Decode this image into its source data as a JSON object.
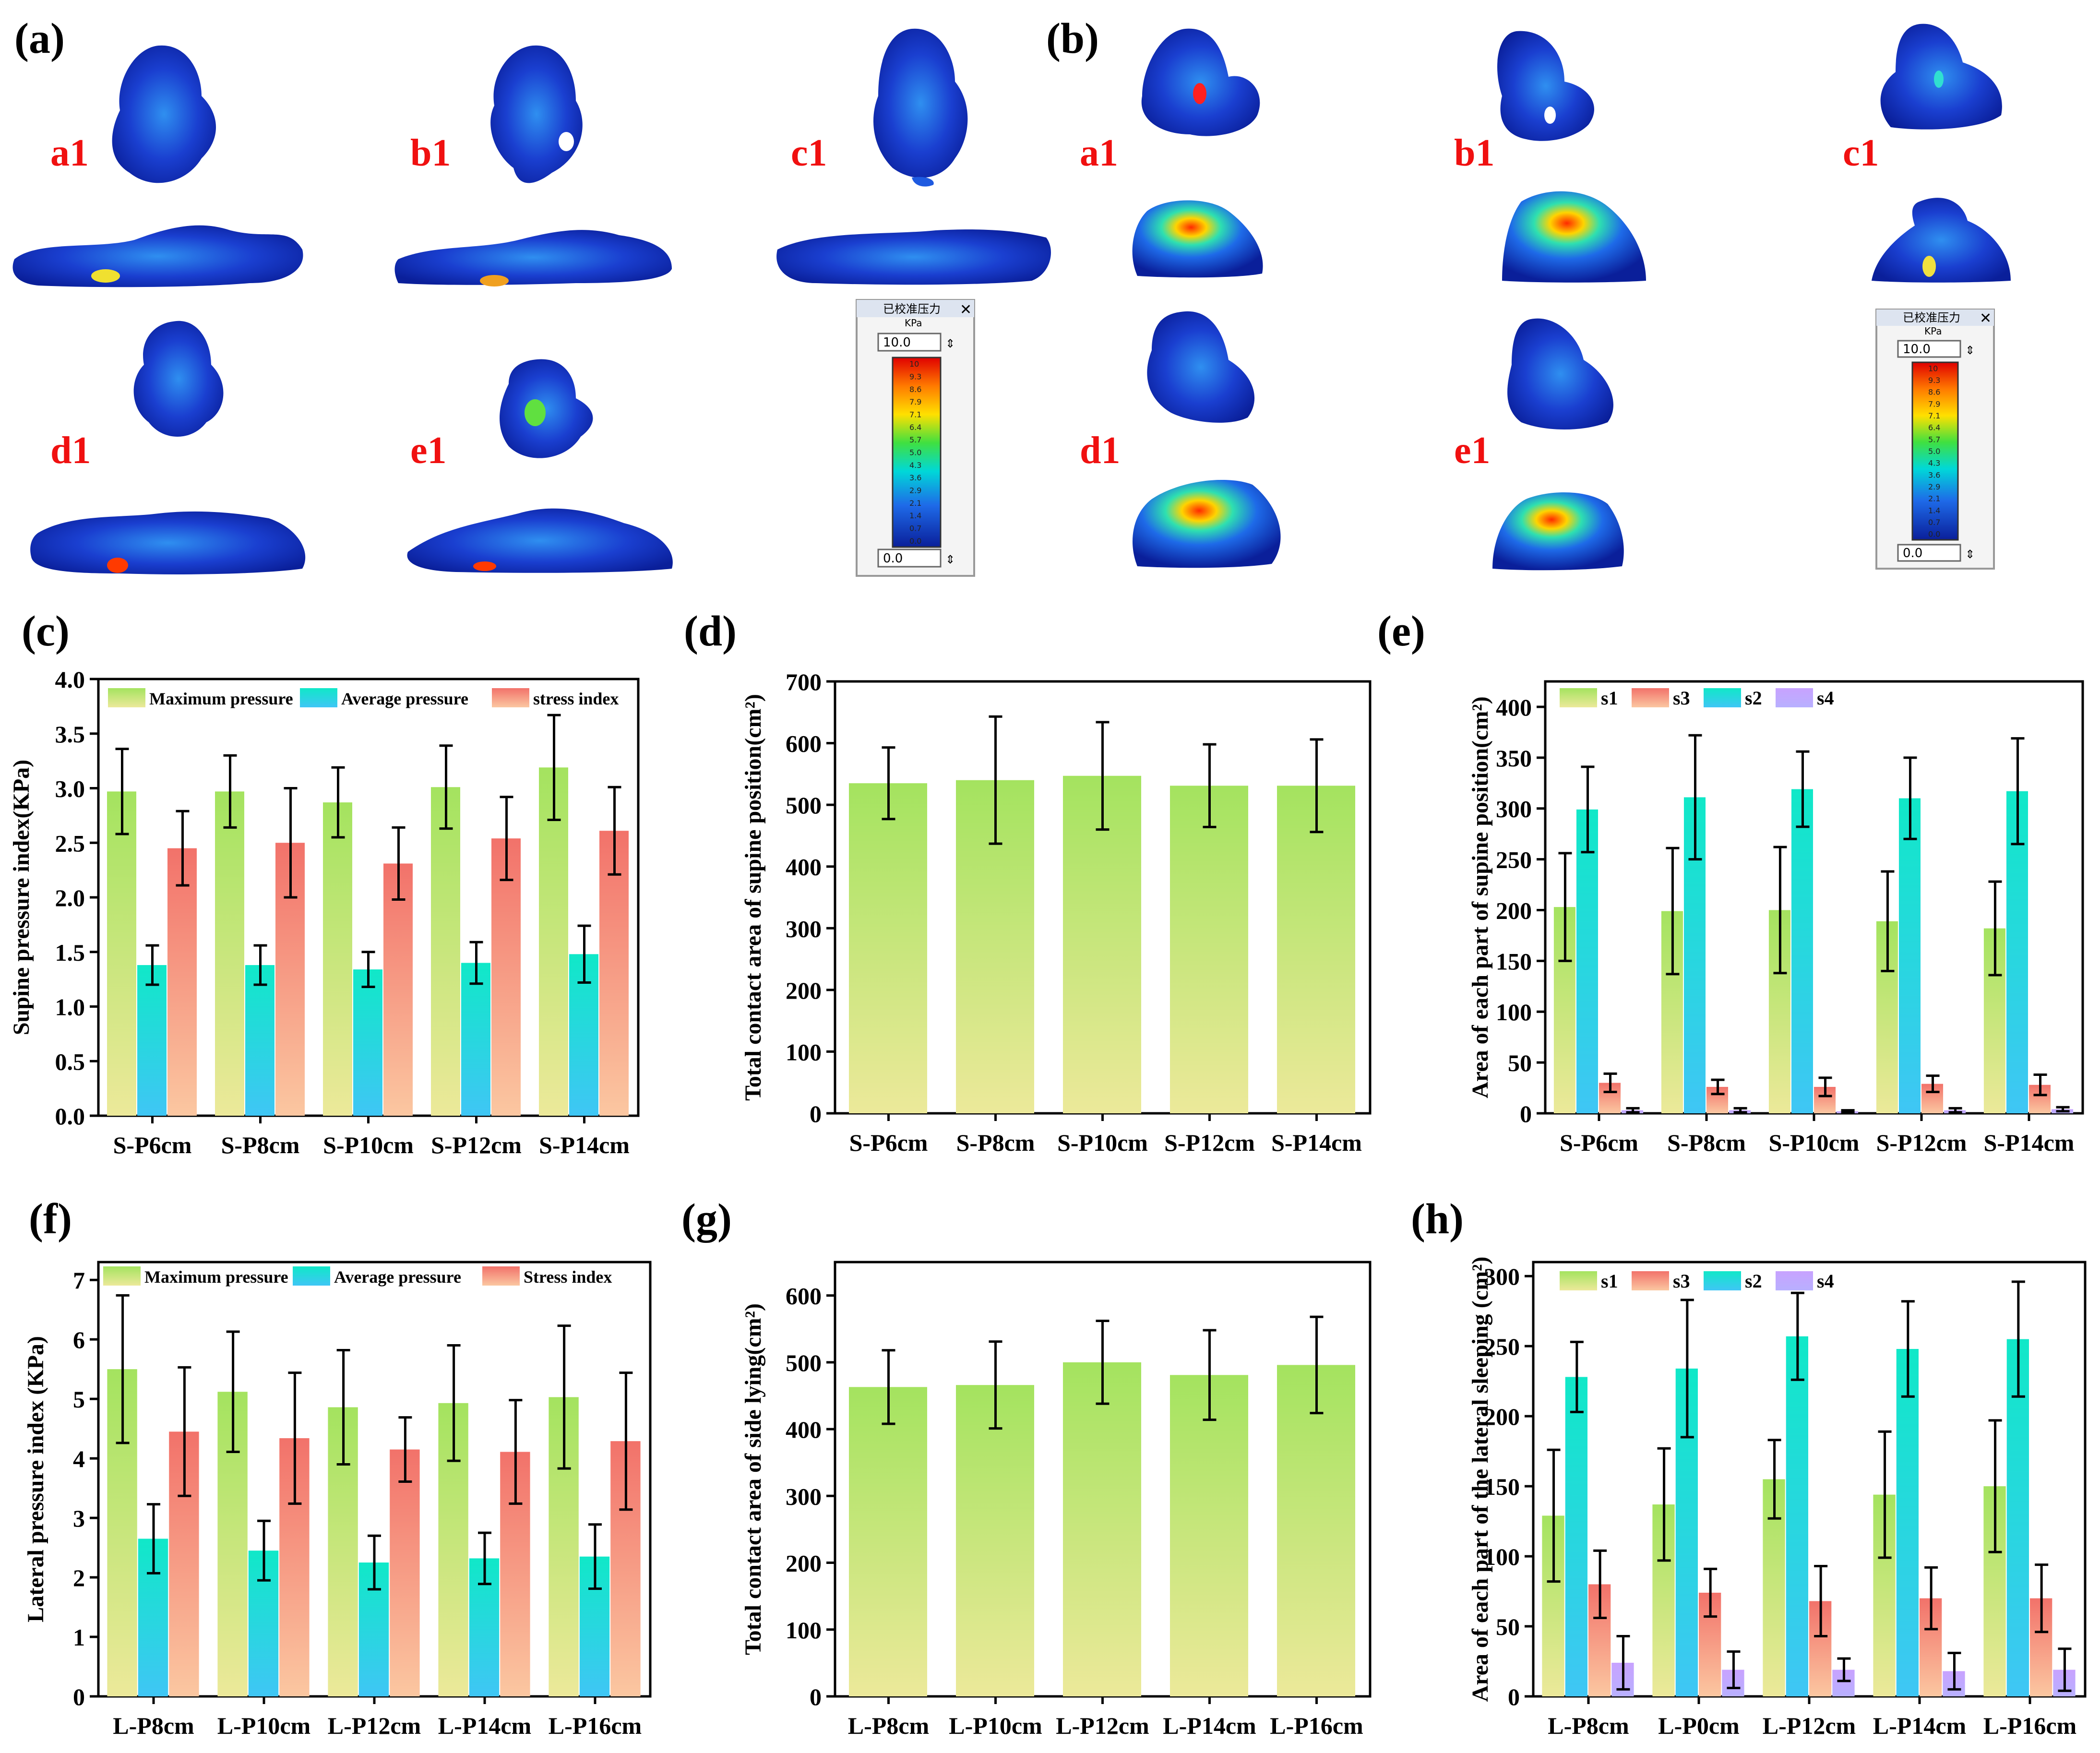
{
  "panel_labels": {
    "a": "(a)",
    "b": "(b)",
    "c": "(c)",
    "d": "(d)",
    "e": "(e)",
    "f": "(f)",
    "g": "(g)",
    "h": "(h)"
  },
  "maps_a": {
    "labels": [
      "a1",
      "b1",
      "c1",
      "d1",
      "e1"
    ]
  },
  "maps_b": {
    "labels": [
      "a1",
      "b1",
      "c1",
      "d1",
      "e1"
    ]
  },
  "scale_a": {
    "title": "已校准压力",
    "unit": "KPa",
    "top": "10.0",
    "bottom": "0.0",
    "ticks": [
      "10",
      "9.3",
      "8.6",
      "7.9",
      "7.1",
      "6.4",
      "5.7",
      "5.0",
      "4.3",
      "3.6",
      "2.9",
      "2.1",
      "1.4",
      "0.7",
      "0.0"
    ]
  },
  "scale_b": {
    "title": "已校准压力",
    "unit": "KPa",
    "top": "10.0",
    "bottom": "0.0",
    "ticks": [
      "10",
      "9.3",
      "8.6",
      "7.9",
      "7.1",
      "6.4",
      "5.7",
      "5.0",
      "4.3",
      "3.6",
      "2.9",
      "2.1",
      "1.4",
      "0.7",
      "0.0"
    ]
  },
  "colors": {
    "green_top": "#a4e35f",
    "green_bottom": "#ece99a",
    "cyan_top": "#10e8c8",
    "cyan_bottom": "#3fc6f5",
    "red_top": "#f2726a",
    "red_bottom": "#fbc7a1",
    "purple_top": "#c8a2ff",
    "purple_bottom": "#b8b0ff"
  },
  "chart_data": [
    {
      "panel": "c",
      "type": "bar",
      "categories": [
        "S-P6cm",
        "S-P8cm",
        "S-P10cm",
        "S-P12cm",
        "S-P14cm"
      ],
      "ylabel": "Supine pressure index(KPa)",
      "ylim": [
        0,
        4.0
      ],
      "yticks": [
        "0.0",
        "0.5",
        "1.0",
        "1.5",
        "2.0",
        "2.5",
        "3.0",
        "3.5",
        "4.0"
      ],
      "legend_position": "top",
      "series": [
        {
          "name": "Maximum pressure",
          "values": [
            2.97,
            2.97,
            2.87,
            3.01,
            3.19
          ],
          "errors": [
            0.39,
            0.33,
            0.32,
            0.38,
            0.48
          ]
        },
        {
          "name": "Average pressure",
          "values": [
            1.38,
            1.38,
            1.34,
            1.4,
            1.48
          ],
          "errors": [
            0.18,
            0.18,
            0.16,
            0.19,
            0.26
          ]
        },
        {
          "name": "stress index",
          "values": [
            2.45,
            2.5,
            2.31,
            2.54,
            2.61
          ],
          "errors": [
            0.34,
            0.5,
            0.33,
            0.38,
            0.4
          ]
        }
      ]
    },
    {
      "panel": "d",
      "type": "bar",
      "categories": [
        "S-P6cm",
        "S-P8cm",
        "S-P10cm",
        "S-P12cm",
        "S-P14cm"
      ],
      "ylabel": "Total contact area of supine position(cm²)",
      "ylim": [
        0,
        700
      ],
      "yticks": [
        "0",
        "100",
        "200",
        "300",
        "400",
        "500",
        "600",
        "700"
      ],
      "series": [
        {
          "values": [
            535,
            540,
            547,
            531,
            531
          ],
          "errors": [
            58,
            103,
            87,
            67,
            75
          ]
        }
      ]
    },
    {
      "panel": "e",
      "type": "bar",
      "categories": [
        "S-P6cm",
        "S-P8cm",
        "S-P10cm",
        "S-P12cm",
        "S-P14cm"
      ],
      "ylabel": "Area of each part of supine position(cm²)",
      "ylim": [
        0,
        425
      ],
      "yticks": [
        "0",
        "50",
        "100",
        "150",
        "200",
        "250",
        "300",
        "350",
        "400"
      ],
      "legend_position": "top-left",
      "series": [
        {
          "name": "s1",
          "values": [
            203,
            199,
            200,
            189,
            182
          ],
          "errors": [
            53,
            62,
            62,
            49,
            46
          ]
        },
        {
          "name": "s2",
          "values": [
            299,
            311,
            319,
            310,
            317
          ],
          "errors": [
            42,
            61,
            37,
            40,
            52
          ]
        },
        {
          "name": "s3",
          "values": [
            30,
            26,
            26,
            29,
            28
          ],
          "errors": [
            9,
            7,
            9,
            8,
            10
          ]
        },
        {
          "name": "s4",
          "values": [
            3,
            3,
            2,
            3,
            4
          ],
          "errors": [
            2,
            2,
            1,
            2,
            2
          ]
        }
      ]
    },
    {
      "panel": "f",
      "type": "bar",
      "categories": [
        "L-P8cm",
        "L-P10cm",
        "L-P12cm",
        "L-P14cm",
        "L-P16cm"
      ],
      "ylabel": "Lateral pressure index (KPa)",
      "ylim": [
        0,
        7.3
      ],
      "yticks": [
        "0",
        "1",
        "2",
        "3",
        "4",
        "5",
        "6",
        "7"
      ],
      "legend_position": "top",
      "series": [
        {
          "name": "Maximum pressure",
          "values": [
            5.5,
            5.12,
            4.86,
            4.93,
            5.03
          ],
          "errors": [
            1.24,
            1.01,
            0.96,
            0.97,
            1.2
          ]
        },
        {
          "name": "Average pressure",
          "values": [
            2.65,
            2.45,
            2.25,
            2.32,
            2.35
          ],
          "errors": [
            0.58,
            0.5,
            0.45,
            0.43,
            0.54
          ]
        },
        {
          "name": "Stress index",
          "values": [
            4.45,
            4.34,
            4.15,
            4.11,
            4.29
          ],
          "errors": [
            1.08,
            1.1,
            0.54,
            0.87,
            1.15
          ]
        }
      ]
    },
    {
      "panel": "g",
      "type": "bar",
      "categories": [
        "L-P8cm",
        "L-P10cm",
        "L-P12cm",
        "L-P14cm",
        "L-P16cm"
      ],
      "ylabel": "Total contact area of side lying(cm²)",
      "ylim": [
        0,
        650
      ],
      "yticks": [
        "0",
        "100",
        "200",
        "300",
        "400",
        "500",
        "600"
      ],
      "series": [
        {
          "values": [
            463,
            466,
            500,
            481,
            496
          ],
          "errors": [
            55,
            65,
            62,
            67,
            72
          ]
        }
      ]
    },
    {
      "panel": "h",
      "type": "bar",
      "categories": [
        "L-P8cm",
        "L-P0cm",
        "L-P12cm",
        "L-P14cm",
        "L-P16cm"
      ],
      "ylabel": "Area of each part of the lateral sleeping (cm²)",
      "ylim": [
        0,
        310
      ],
      "yticks": [
        "0",
        "50",
        "100",
        "150",
        "200",
        "250",
        "300"
      ],
      "legend_position": "top-left",
      "series": [
        {
          "name": "s1",
          "values": [
            129,
            137,
            155,
            144,
            150
          ],
          "errors": [
            47,
            40,
            28,
            45,
            47
          ]
        },
        {
          "name": "s2",
          "values": [
            228,
            234,
            257,
            248,
            255
          ],
          "errors": [
            25,
            49,
            31,
            34,
            41
          ]
        },
        {
          "name": "s3",
          "values": [
            80,
            74,
            68,
            70,
            70
          ],
          "errors": [
            24,
            17,
            25,
            22,
            24
          ]
        },
        {
          "name": "s4",
          "values": [
            24,
            19,
            19,
            18,
            19
          ],
          "errors": [
            19,
            13,
            8,
            13,
            15
          ]
        }
      ]
    }
  ]
}
